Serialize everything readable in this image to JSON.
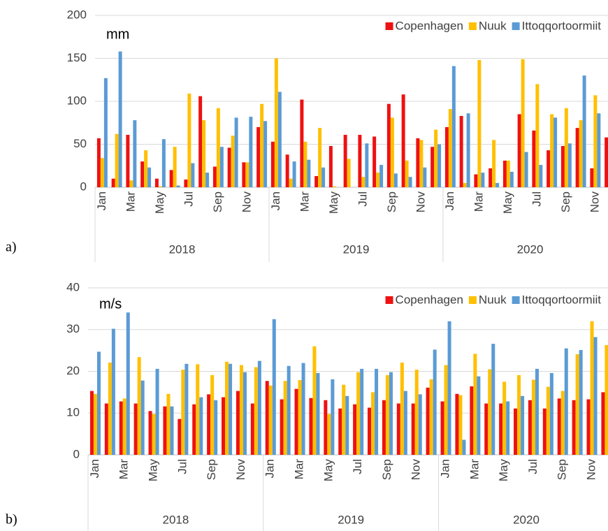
{
  "chart_data": [
    {
      "type": "bar",
      "panel_label": "a)",
      "ylabel": "mm",
      "categories": [
        "Jan",
        null,
        "Mar",
        null,
        "May",
        null,
        "Jul",
        null,
        "Sep",
        null,
        "Nov",
        null,
        "Jan",
        null,
        "Mar",
        null,
        "May",
        null,
        "Jul",
        null,
        "Sep",
        null,
        "Nov",
        null,
        "Jan",
        null,
        "Mar",
        null,
        "May",
        null,
        "Jul",
        null,
        "Sep",
        null,
        "Nov",
        null
      ],
      "groups": [
        "2018",
        "2019",
        "2020"
      ],
      "ylim": [
        0,
        200
      ],
      "yticks": [
        0,
        50,
        100,
        150,
        200
      ],
      "grid": true,
      "legend": "top-right",
      "series": [
        {
          "name": "Copenhagen",
          "color": "#ee1111",
          "values": [
            57,
            10,
            61,
            30,
            10,
            20,
            9,
            106,
            24,
            46,
            29,
            70,
            53,
            38,
            102,
            13,
            48,
            61,
            61,
            59,
            97,
            108,
            57,
            47,
            70,
            83,
            15,
            22,
            31,
            85,
            66,
            43,
            48,
            69,
            22,
            58
          ]
        },
        {
          "name": "Nuuk",
          "color": "#ffc000",
          "values": [
            34,
            62,
            8,
            43,
            1,
            47,
            109,
            78,
            92,
            60,
            29,
            97,
            150,
            10,
            53,
            69,
            1,
            33,
            12,
            17,
            81,
            31,
            55,
            67,
            91,
            5,
            148,
            55,
            31,
            149,
            120,
            85,
            92,
            78,
            107,
            null
          ]
        },
        {
          "name": "Ittoqqortoormiit",
          "color": "#5b9bd5",
          "values": [
            127,
            158,
            78,
            23,
            56,
            2,
            28,
            17,
            47,
            81,
            82,
            77,
            111,
            30,
            32,
            23,
            0,
            0,
            51,
            26,
            16,
            12,
            23,
            50,
            141,
            86,
            17,
            5,
            18,
            41,
            26,
            81,
            51,
            130,
            86,
            null
          ]
        }
      ]
    },
    {
      "type": "bar",
      "panel_label": "b)",
      "ylabel": "m/s",
      "categories": [
        "Jan",
        null,
        "Mar",
        null,
        "May",
        null,
        "Jul",
        null,
        "Sep",
        null,
        "Nov",
        null,
        "Jan",
        null,
        "Mar",
        null,
        "May",
        null,
        "Jul",
        null,
        "Sep",
        null,
        "Nov",
        null,
        "Jan",
        null,
        "Mar",
        null,
        "May",
        null,
        "Jul",
        null,
        "Sep",
        null,
        "Nov",
        null
      ],
      "groups": [
        "2018",
        "2019",
        "2020"
      ],
      "ylim": [
        0,
        40
      ],
      "yticks": [
        0,
        10,
        20,
        30,
        40
      ],
      "grid": true,
      "legend": "top-right",
      "series": [
        {
          "name": "Copenhagen",
          "color": "#ee1111",
          "values": [
            15.3,
            12.3,
            12.8,
            12.3,
            10.5,
            11.6,
            8.6,
            12.1,
            14.5,
            13.8,
            15.3,
            12.3,
            17.7,
            13.3,
            15.8,
            13.6,
            13.1,
            11.1,
            12.1,
            11.3,
            13.1,
            12.3,
            12.3,
            16.1,
            12.8,
            14.6,
            16.4,
            12.3,
            12.3,
            11.1,
            13.1,
            11.1,
            13.5,
            13.1,
            13.3,
            15.0
          ]
        },
        {
          "name": "Nuuk",
          "color": "#ffc000",
          "values": [
            14.6,
            22.1,
            13.5,
            23.4,
            9.8,
            14.6,
            20.4,
            21.7,
            19.1,
            22.3,
            21.5,
            21.0,
            16.6,
            17.7,
            17.9,
            26.0,
            9.8,
            16.8,
            19.8,
            15.0,
            19.1,
            22.1,
            20.4,
            18.1,
            21.5,
            14.3,
            24.2,
            20.5,
            17.5,
            19.1,
            18.0,
            16.3,
            15.3,
            24.1,
            32.0,
            26.3
          ]
        },
        {
          "name": "Ittoqqortoormiit",
          "color": "#5b9bd5",
          "values": [
            24.7,
            30.2,
            34.1,
            17.8,
            20.6,
            11.6,
            21.8,
            13.8,
            13.1,
            21.8,
            19.8,
            22.5,
            32.5,
            21.3,
            22.0,
            19.6,
            18.1,
            14.1,
            20.6,
            20.6,
            19.8,
            15.3,
            14.5,
            25.2,
            32.0,
            3.6,
            18.8,
            26.6,
            12.8,
            14.1,
            20.6,
            19.6,
            25.5,
            25.1,
            28.2,
            null
          ]
        }
      ]
    }
  ]
}
